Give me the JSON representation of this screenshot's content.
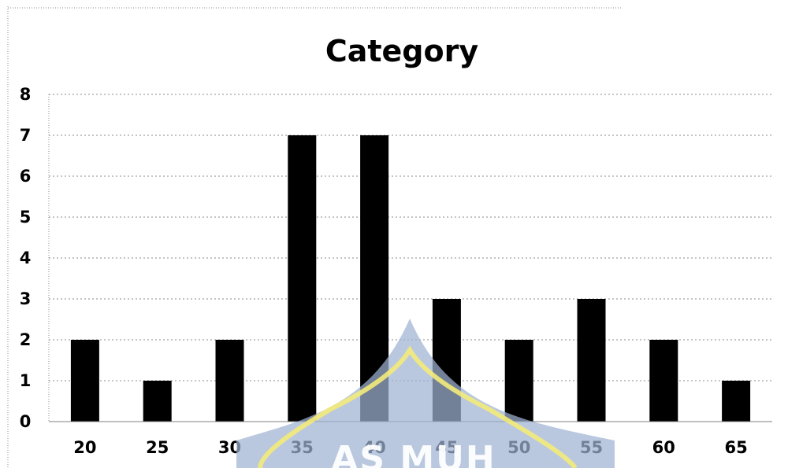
{
  "chart_data": {
    "type": "bar",
    "title": "Category",
    "xlabel": "",
    "ylabel": "",
    "categories": [
      "20",
      "25",
      "30",
      "35",
      "40",
      "45",
      "50",
      "55",
      "60",
      "65"
    ],
    "values": [
      2,
      1,
      2,
      7,
      7,
      3,
      2,
      3,
      2,
      1
    ],
    "ylim": [
      0,
      8
    ],
    "y_ticks": [
      "0",
      "1",
      "2",
      "3",
      "4",
      "5",
      "6",
      "7",
      "8"
    ],
    "grid": true,
    "legend": "none",
    "bar_color": "#000000"
  },
  "watermark": {
    "text": "AS MUH",
    "fill_color": "#9fb3d3",
    "outline_color": "#f3ea7a"
  }
}
